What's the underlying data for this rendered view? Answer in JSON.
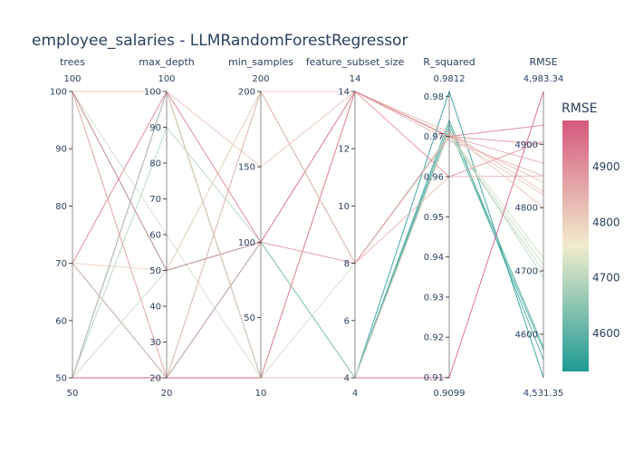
{
  "chart_data": {
    "type": "parallel_coordinates",
    "title": "employee_salaries - LLMRandomForestRegressor",
    "color_by": "RMSE",
    "colorscale": [
      "#1d9a94",
      "#f1eccd",
      "#d5587e"
    ],
    "dimensions": [
      {
        "label": "trees",
        "range": [
          50,
          100
        ],
        "ticks": [
          50,
          60,
          70,
          80,
          90,
          100
        ],
        "min_label": "50",
        "max_label": "100"
      },
      {
        "label": "max_depth",
        "range": [
          20,
          100
        ],
        "ticks": [
          20,
          30,
          40,
          50,
          60,
          70,
          80,
          90,
          100
        ],
        "min_label": "20",
        "max_label": "100"
      },
      {
        "label": "min_samples",
        "range": [
          10,
          200
        ],
        "ticks": [
          50,
          100,
          150,
          200
        ],
        "min_label": "10",
        "max_label": "200"
      },
      {
        "label": "feature_subset_size",
        "range": [
          4,
          14
        ],
        "ticks": [
          4,
          6,
          8,
          10,
          12,
          14
        ],
        "min_label": "4",
        "max_label": "14"
      },
      {
        "label": "R_squared",
        "range": [
          0.9099,
          0.9812
        ],
        "ticks": [
          0.91,
          0.92,
          0.93,
          0.94,
          0.95,
          0.96,
          0.97,
          0.98
        ],
        "min_label": "0.9099",
        "max_label": "0.9812"
      },
      {
        "label": "RMSE",
        "range": [
          4531.35,
          4983.34
        ],
        "ticks": [
          4600,
          4700,
          4800,
          4900
        ],
        "min_label": "4,531.35",
        "max_label": "4,983.34"
      }
    ],
    "lines": [
      [
        50,
        100,
        10,
        4,
        0.9812,
        4531.35
      ],
      [
        50,
        100,
        10,
        4,
        0.974,
        4560
      ],
      [
        70,
        20,
        100,
        4,
        0.972,
        4575
      ],
      [
        100,
        50,
        100,
        4,
        0.973,
        4580
      ],
      [
        50,
        90,
        100,
        4,
        0.971,
        4690
      ],
      [
        100,
        20,
        200,
        8,
        0.97,
        4700
      ],
      [
        50,
        50,
        200,
        8,
        0.97,
        4710
      ],
      [
        100,
        60,
        10,
        8,
        0.9705,
        4720
      ],
      [
        70,
        50,
        200,
        14,
        0.971,
        4800
      ],
      [
        50,
        100,
        150,
        14,
        0.97,
        4820
      ],
      [
        100,
        20,
        10,
        14,
        0.971,
        4825
      ],
      [
        70,
        20,
        10,
        14,
        0.97,
        4840
      ],
      [
        100,
        100,
        10,
        14,
        0.969,
        4850
      ],
      [
        50,
        20,
        100,
        14,
        0.97,
        4870
      ],
      [
        100,
        50,
        100,
        8,
        0.97,
        4900
      ],
      [
        70,
        100,
        100,
        14,
        0.97,
        4930
      ],
      [
        50,
        20,
        10,
        14,
        0.96,
        4905
      ],
      [
        100,
        20,
        200,
        8,
        0.96,
        4850
      ],
      [
        50,
        20,
        10,
        4,
        0.9099,
        4983.34
      ],
      [
        100,
        100,
        10,
        4,
        0.971,
        4800
      ]
    ]
  }
}
